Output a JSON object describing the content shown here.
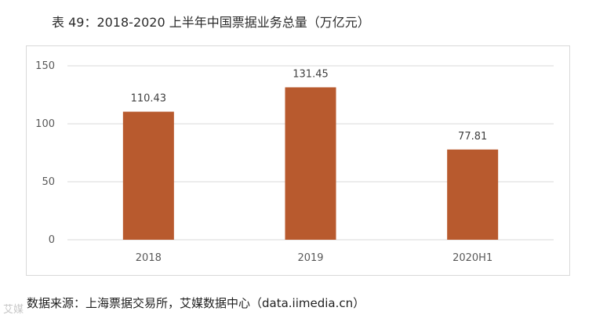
{
  "title": "表 49：2018-2020 上半年中国票据业务总量（万亿元）",
  "source": "数据来源：上海票据交易所，艾媒数据中心（data.iimedia.cn）",
  "watermark": "艾媒",
  "colors": {
    "bar": "#b85a2e",
    "grid": "#d9d9d9"
  },
  "chart_data": {
    "type": "bar",
    "title": "表 49：2018-2020 上半年中国票据业务总量（万亿元）",
    "xlabel": "",
    "ylabel": "",
    "categories": [
      "2018",
      "2019",
      "2020H1"
    ],
    "values": [
      110.43,
      131.45,
      77.81
    ],
    "value_labels": [
      "110.43",
      "131.45",
      "77.81"
    ],
    "ylim": [
      0,
      150
    ],
    "yticks": [
      0,
      50,
      100,
      150
    ],
    "ytick_labels": [
      "0",
      "50",
      "100",
      "150"
    ],
    "grid": true,
    "legend": "none"
  }
}
